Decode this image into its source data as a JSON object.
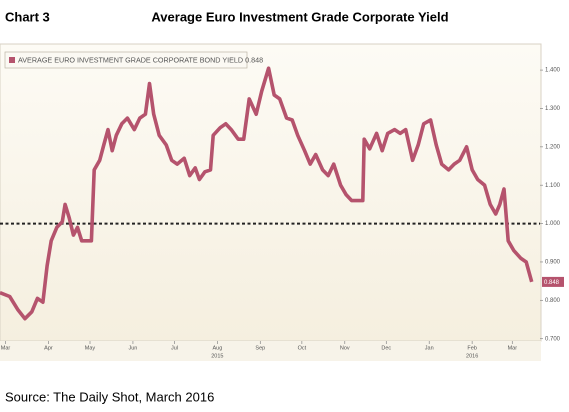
{
  "chart_data": {
    "type": "line",
    "chart_label": "Chart 3",
    "title": "Average Euro Investment Grade Corporate Yield",
    "source": "Source: The Daily Shot, March 2016",
    "x": [
      -4,
      3,
      9,
      14,
      19,
      23,
      27,
      30,
      33,
      37,
      41,
      43,
      46,
      49,
      52,
      55,
      59,
      62,
      64,
      68,
      71,
      74,
      77,
      80,
      84,
      88,
      93,
      97,
      101,
      104,
      107,
      111,
      116,
      120,
      124,
      129,
      133,
      137,
      140,
      144,
      148,
      150,
      155,
      159,
      163,
      168,
      172,
      176,
      181,
      185,
      190,
      194,
      198,
      203,
      207,
      211,
      216,
      220,
      224,
      229,
      233,
      237,
      242,
      246,
      250,
      255,
      258,
      259,
      263,
      268,
      272,
      276,
      281,
      285,
      289,
      294,
      298,
      302,
      307,
      311,
      315,
      320,
      324,
      328,
      333,
      337,
      341,
      346,
      350,
      354,
      357,
      360,
      363,
      367,
      372,
      376,
      380
    ],
    "series": [
      {
        "name": "AVERAGE EURO INVESTMENT GRADE CORPORATE BOND YIELD 0.848",
        "color": "#b5536d",
        "values": [
          0.82,
          0.81,
          0.775,
          0.752,
          0.77,
          0.805,
          0.795,
          0.89,
          0.955,
          0.99,
          1.005,
          1.05,
          1.015,
          0.97,
          0.99,
          0.955,
          0.955,
          0.955,
          1.14,
          1.165,
          1.205,
          1.245,
          1.19,
          1.23,
          1.26,
          1.275,
          1.245,
          1.275,
          1.285,
          1.365,
          1.285,
          1.23,
          1.205,
          1.165,
          1.155,
          1.17,
          1.125,
          1.145,
          1.115,
          1.135,
          1.14,
          1.23,
          1.25,
          1.26,
          1.245,
          1.22,
          1.22,
          1.325,
          1.285,
          1.345,
          1.405,
          1.335,
          1.325,
          1.275,
          1.27,
          1.23,
          1.19,
          1.155,
          1.18,
          1.14,
          1.125,
          1.155,
          1.1,
          1.075,
          1.06,
          1.06,
          1.06,
          1.22,
          1.195,
          1.235,
          1.19,
          1.235,
          1.245,
          1.235,
          1.245,
          1.165,
          1.205,
          1.26,
          1.27,
          1.205,
          1.155,
          1.14,
          1.155,
          1.165,
          1.2,
          1.14,
          1.115,
          1.1,
          1.05,
          1.025,
          1.05,
          1.09,
          0.955,
          0.93,
          0.91,
          0.9,
          0.848
        ]
      }
    ],
    "xlim": [
      -4,
      386
    ],
    "xticks": [
      {
        "value": 0,
        "label": "Mar"
      },
      {
        "value": 31,
        "label": "Apr"
      },
      {
        "value": 61,
        "label": "May"
      },
      {
        "value": 92,
        "label": "Jun"
      },
      {
        "value": 122,
        "label": "Jul"
      },
      {
        "value": 153,
        "label": "Aug"
      },
      {
        "value": 184,
        "label": "Sep"
      },
      {
        "value": 214,
        "label": "Oct"
      },
      {
        "value": 245,
        "label": "Nov"
      },
      {
        "value": 275,
        "label": "Dec"
      },
      {
        "value": 306,
        "label": "Jan"
      },
      {
        "value": 337,
        "label": "Feb"
      },
      {
        "value": 366,
        "label": "Mar"
      }
    ],
    "year_labels": [
      {
        "value": 153,
        "label": "2015"
      },
      {
        "value": 337,
        "label": "2016"
      }
    ],
    "ylim": [
      0.694,
      1.468
    ],
    "yticks": [
      {
        "value": 0.7,
        "label": "0.700"
      },
      {
        "value": 0.8,
        "label": "0.800"
      },
      {
        "value": 0.9,
        "label": "0.900"
      },
      {
        "value": 1,
        "label": "1.000"
      },
      {
        "value": 1.1,
        "label": "1.100"
      },
      {
        "value": 1.2,
        "label": "1.200"
      },
      {
        "value": 1.3,
        "label": "1.300"
      },
      {
        "value": 1.4,
        "label": "1.400"
      }
    ],
    "reference_line": 1
  }
}
